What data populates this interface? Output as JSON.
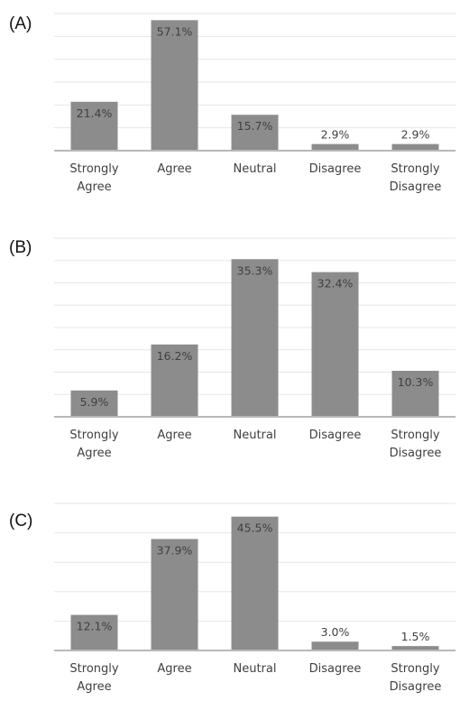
{
  "chart_data": [
    {
      "panel": "(A)",
      "type": "bar",
      "categories": [
        [
          "Strongly",
          "Agree"
        ],
        [
          "Agree"
        ],
        [
          "Neutral"
        ],
        [
          "Disagree"
        ],
        [
          "Strongly",
          "Disagree"
        ]
      ],
      "values": [
        21.4,
        57.1,
        15.7,
        2.9,
        2.9
      ],
      "labels": [
        "21.4%",
        "57.1%",
        "15.7%",
        "2.9%",
        "2.9%"
      ],
      "ylim": [
        0,
        60
      ],
      "grid": true,
      "gridlines": 6,
      "bar_color": "#8c8c8c"
    },
    {
      "panel": "(B)",
      "type": "bar",
      "categories": [
        [
          "Strongly",
          "Agree"
        ],
        [
          "Agree"
        ],
        [
          "Neutral"
        ],
        [
          "Disagree"
        ],
        [
          "Strongly",
          "Disagree"
        ]
      ],
      "values": [
        5.9,
        16.2,
        35.3,
        32.4,
        10.3
      ],
      "labels": [
        "5.9%",
        "16.2%",
        "35.3%",
        "32.4%",
        "10.3%"
      ],
      "ylim": [
        0,
        40
      ],
      "grid": true,
      "gridlines": 8,
      "bar_color": "#8c8c8c"
    },
    {
      "panel": "(C)",
      "type": "bar",
      "categories": [
        [
          "Strongly",
          "Agree"
        ],
        [
          "Agree"
        ],
        [
          "Neutral"
        ],
        [
          "Disagree"
        ],
        [
          "Strongly",
          "Disagree"
        ]
      ],
      "values": [
        12.1,
        37.9,
        45.5,
        3.0,
        1.5
      ],
      "labels": [
        "12.1%",
        "37.9%",
        "45.5%",
        "3.0%",
        "1.5%"
      ],
      "ylim": [
        0,
        50
      ],
      "grid": true,
      "gridlines": 5,
      "bar_color": "#8c8c8c"
    }
  ]
}
